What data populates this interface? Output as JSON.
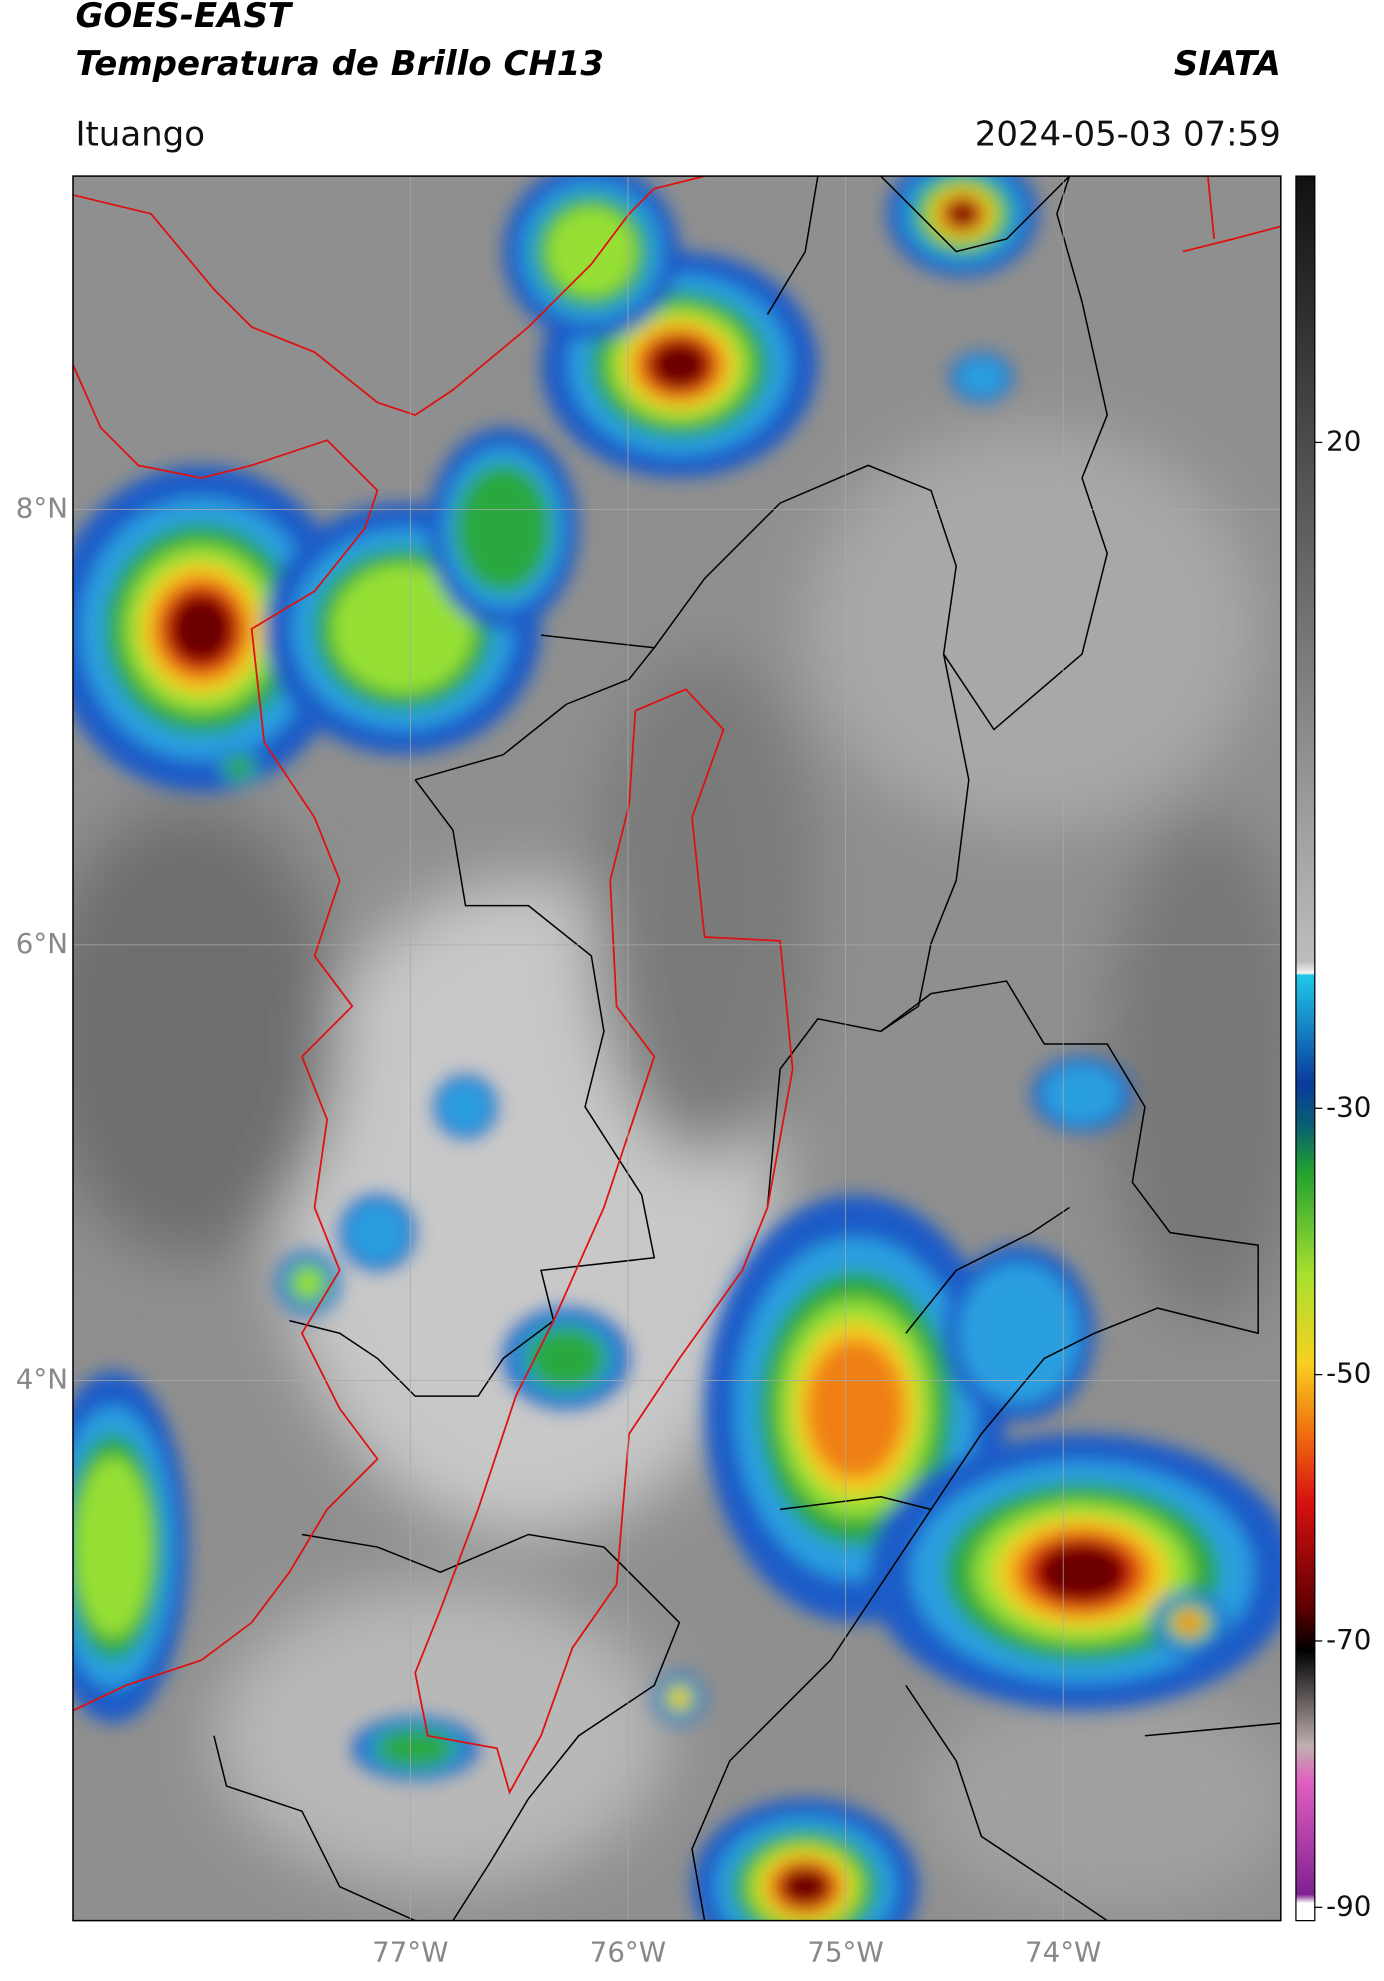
{
  "header": {
    "title": "GOES-EAST",
    "subtitle": "Temperatura de Brillo CH13",
    "source": "SIATA",
    "location": "Ituango",
    "datetime": "2024-05-03 07:59"
  },
  "map": {
    "xlim": [
      -78.55,
      -73.0
    ],
    "ylim": [
      1.52,
      9.53
    ],
    "xticks": [
      {
        "value": -77,
        "label": "77°W"
      },
      {
        "value": -76,
        "label": "76°W"
      },
      {
        "value": -75,
        "label": "75°W"
      },
      {
        "value": -74,
        "label": "74°W"
      }
    ],
    "yticks": [
      {
        "value": 8,
        "label": "8°N"
      },
      {
        "value": 6,
        "label": "6°N"
      },
      {
        "value": 4,
        "label": "4°N"
      }
    ]
  },
  "colorbar": {
    "lim": [
      -91,
      40
    ],
    "ticks": [
      20,
      -30,
      -50,
      -70,
      -90
    ]
  }
}
